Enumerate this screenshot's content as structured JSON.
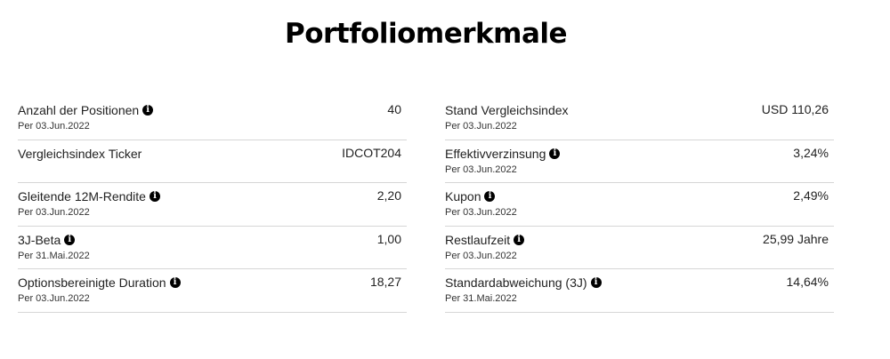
{
  "title": "Portfoliomerkmale",
  "left": [
    {
      "label": "Anzahl der Positionen",
      "info": true,
      "date": "Per 03.Jun.2022",
      "value": "40"
    },
    {
      "label": "Vergleichsindex Ticker",
      "info": false,
      "date": "",
      "value": "IDCOT204"
    },
    {
      "label": "Gleitende 12M-Rendite",
      "info": true,
      "date": "Per 03.Jun.2022",
      "value": "2,20"
    },
    {
      "label": "3J-Beta",
      "info": true,
      "date": "Per 31.Mai.2022",
      "value": "1,00"
    },
    {
      "label": "Optionsbereinigte Duration",
      "info": true,
      "date": "Per 03.Jun.2022",
      "value": "18,27"
    }
  ],
  "right": [
    {
      "label": "Stand Vergleichsindex",
      "info": false,
      "date": "Per 03.Jun.2022",
      "value": "USD 110,26"
    },
    {
      "label": "Effektivverzinsung",
      "info": true,
      "date": "Per 03.Jun.2022",
      "value": "3,24%"
    },
    {
      "label": "Kupon",
      "info": true,
      "date": "Per 03.Jun.2022",
      "value": "2,49%"
    },
    {
      "label": "Restlaufzeit",
      "info": true,
      "date": "Per 03.Jun.2022",
      "value": "25,99 Jahre"
    },
    {
      "label": "Standardabweichung (3J)",
      "info": true,
      "date": "Per 31.Mai.2022",
      "value": "14,64%"
    }
  ]
}
